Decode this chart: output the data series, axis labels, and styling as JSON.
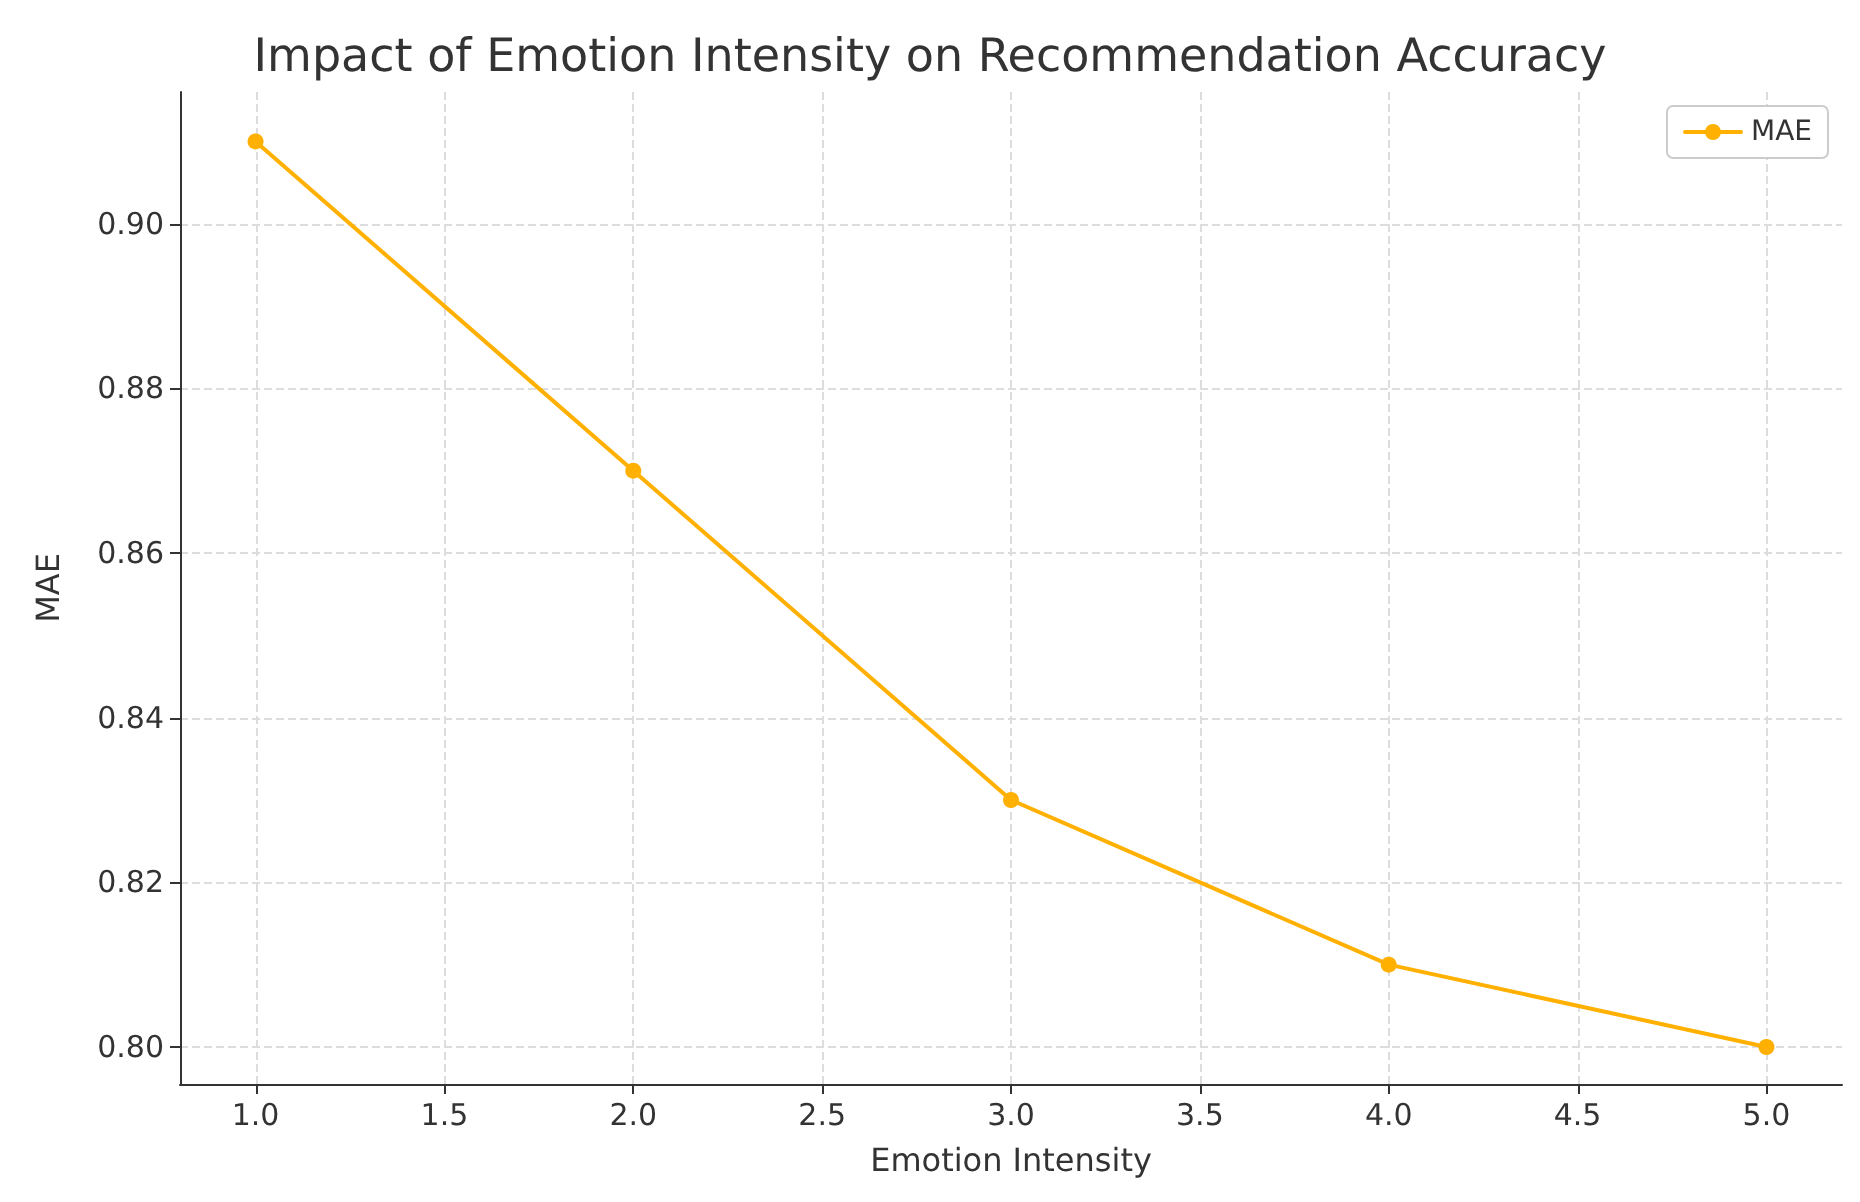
{
  "chart_data": {
    "type": "line",
    "title": "Impact of Emotion Intensity on Recommendation Accuracy",
    "xlabel": "Emotion Intensity",
    "ylabel": "MAE",
    "x": [
      1,
      2,
      3,
      4,
      5
    ],
    "series": [
      {
        "name": "MAE",
        "color": "#ffb000",
        "values": [
          0.91,
          0.87,
          0.83,
          0.81,
          0.8
        ]
      }
    ],
    "xlim": [
      0.8,
      5.2
    ],
    "ylim": [
      0.7955,
      0.916
    ],
    "xticks": [
      {
        "value": 1,
        "label": "1.0"
      },
      {
        "value": 1.5,
        "label": "1.5"
      },
      {
        "value": 2,
        "label": "2.0"
      },
      {
        "value": 2.5,
        "label": "2.5"
      },
      {
        "value": 3,
        "label": "3.0"
      },
      {
        "value": 3.5,
        "label": "3.5"
      },
      {
        "value": 4,
        "label": "4.0"
      },
      {
        "value": 4.5,
        "label": "4.5"
      },
      {
        "value": 5,
        "label": "5.0"
      }
    ],
    "yticks": [
      {
        "value": 0.8,
        "label": "0.80"
      },
      {
        "value": 0.82,
        "label": "0.82"
      },
      {
        "value": 0.84,
        "label": "0.84"
      },
      {
        "value": 0.86,
        "label": "0.86"
      },
      {
        "value": 0.88,
        "label": "0.88"
      },
      {
        "value": 0.9,
        "label": "0.90"
      }
    ],
    "grid": true,
    "legend": "top right",
    "marker": "circle",
    "line_style": "solid"
  }
}
